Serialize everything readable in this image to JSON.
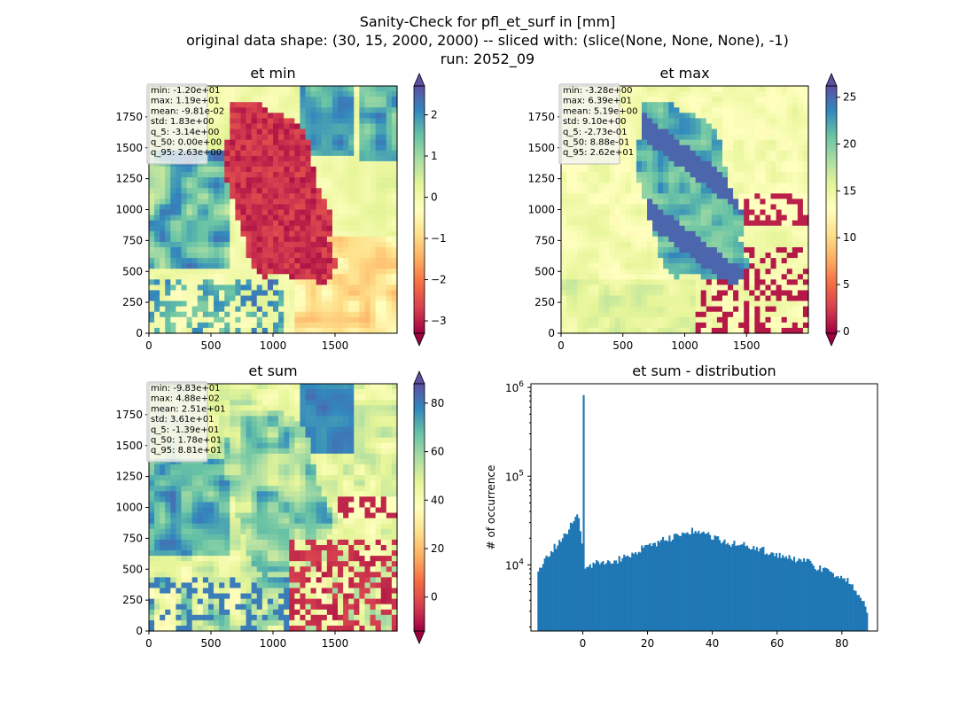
{
  "title_lines": [
    "Sanity-Check for pfl_et_surf in [mm]",
    "original data shape: (30, 15, 2000, 2000) -- sliced with: (slice(None, None, None), -1)",
    "run: 2052_09"
  ],
  "chart_data": [
    {
      "type": "heatmap",
      "title": "et min",
      "colormap": "Spectral",
      "xlim": [
        0,
        2000
      ],
      "ylim": [
        0,
        2000
      ],
      "xticks": [
        0,
        500,
        1000,
        1500
      ],
      "yticks": [
        0,
        250,
        500,
        750,
        1000,
        1250,
        1500,
        1750
      ],
      "colorbar": {
        "vmin": -3.3,
        "vmax": 2.7,
        "ticks": [
          -3,
          -2,
          -1,
          0,
          1,
          2
        ],
        "extend": "both"
      },
      "stats": [
        "min: -1.20e+01",
        "max: 1.19e+01",
        "mean: -9.81e-02",
        "std: 1.83e+00",
        "q_5: -3.14e+00",
        "q_50: 0.00e+00",
        "q_95: 2.63e+00"
      ]
    },
    {
      "type": "heatmap",
      "title": "et max",
      "colormap": "Spectral",
      "xlim": [
        0,
        2000
      ],
      "ylim": [
        0,
        2000
      ],
      "xticks": [
        0,
        500,
        1000,
        1500
      ],
      "yticks": [
        0,
        250,
        500,
        750,
        1000,
        1250,
        1500,
        1750
      ],
      "colorbar": {
        "vmin": -0.2,
        "vmax": 26.2,
        "ticks": [
          0,
          5,
          10,
          15,
          20,
          25
        ],
        "extend": "both"
      },
      "stats": [
        "min: -3.28e+00",
        "max: 6.39e+01",
        "mean: 5.19e+00",
        "std: 9.10e+00",
        "q_5: -2.73e-01",
        "q_50: 8.88e-01",
        "q_95: 2.62e+01"
      ]
    },
    {
      "type": "heatmap",
      "title": "et sum",
      "colormap": "Spectral",
      "xlim": [
        0,
        2000
      ],
      "ylim": [
        0,
        2000
      ],
      "xticks": [
        0,
        500,
        1000,
        1500
      ],
      "yticks": [
        0,
        250,
        500,
        750,
        1000,
        1250,
        1500,
        1750
      ],
      "colorbar": {
        "vmin": -14,
        "vmax": 88,
        "ticks": [
          0,
          20,
          40,
          60,
          80
        ],
        "extend": "both"
      },
      "stats": [
        "min: -9.83e+01",
        "max: 4.88e+02",
        "mean: 2.51e+01",
        "std: 3.61e+01",
        "q_5: -1.39e+01",
        "q_50: 1.78e+01",
        "q_95: 8.81e+01"
      ]
    },
    {
      "type": "bar",
      "title": "et sum - distribution",
      "ylabel": "# of occurrence",
      "yscale": "log",
      "xlim": [
        -16,
        91
      ],
      "ylim": [
        1800,
        1100000
      ],
      "xticks": [
        0,
        20,
        40,
        60,
        80
      ],
      "yticks": [
        10000,
        100000,
        1000000
      ],
      "color": "#1f77b4",
      "bin_width": 0.5,
      "x_start": -14,
      "x_end": 88,
      "envelope": [
        [
          -14,
          7500
        ],
        [
          -12,
          11000
        ],
        [
          -10,
          14000
        ],
        [
          -8,
          17000
        ],
        [
          -6,
          20000
        ],
        [
          -4,
          26000
        ],
        [
          -3,
          32000
        ],
        [
          -2,
          38000
        ],
        [
          -1,
          30000
        ],
        [
          -0.5,
          20000
        ],
        [
          0.5,
          9500
        ],
        [
          2,
          10000
        ],
        [
          5,
          10500
        ],
        [
          10,
          11000
        ],
        [
          15,
          13000
        ],
        [
          20,
          16500
        ],
        [
          25,
          19000
        ],
        [
          30,
          22000
        ],
        [
          34,
          24000
        ],
        [
          38,
          22000
        ],
        [
          45,
          18000
        ],
        [
          50,
          16500
        ],
        [
          55,
          15000
        ],
        [
          60,
          13000
        ],
        [
          65,
          12000
        ],
        [
          70,
          10500
        ],
        [
          75,
          8500
        ],
        [
          80,
          7500
        ],
        [
          84,
          5500
        ],
        [
          86,
          4200
        ],
        [
          88,
          3000
        ]
      ],
      "spike": {
        "x": 0,
        "value": 820000
      }
    }
  ]
}
